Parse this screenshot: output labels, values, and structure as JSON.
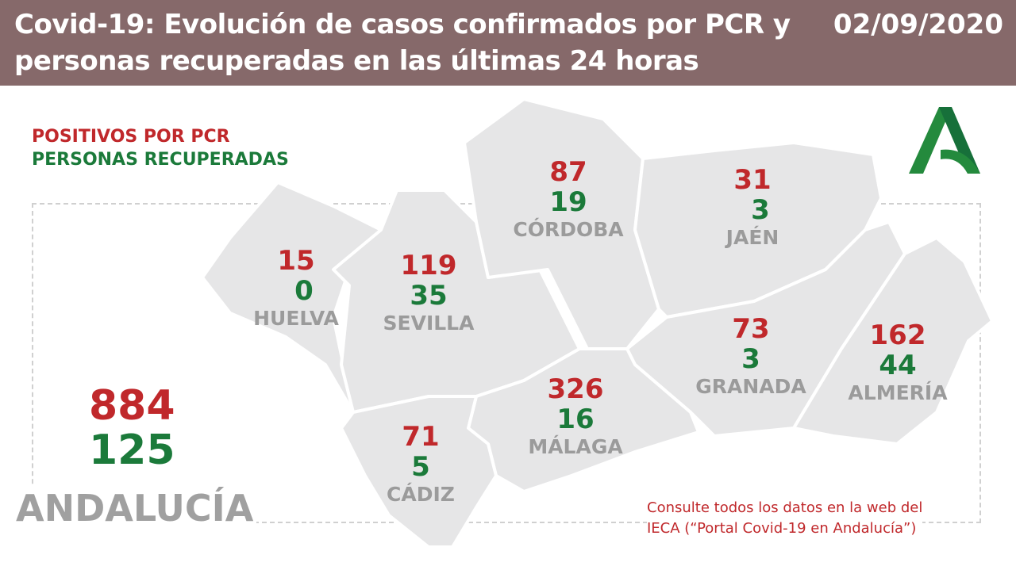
{
  "header": {
    "title": "Covid-19: Evolución de casos confirmados por PCR y personas recuperadas en las últimas 24 horas",
    "date": "02/09/2020"
  },
  "legend": {
    "positive": "POSITIVOS POR PCR",
    "recovered": "PERSONAS RECUPERADAS"
  },
  "colors": {
    "header": "#86696a",
    "positive": "#c0282b",
    "recovered": "#1b7a3a",
    "province_fill": "#e6e6e7"
  },
  "provinces": [
    {
      "name": "HUELVA",
      "positive": "15",
      "recovered": "0"
    },
    {
      "name": "SEVILLA",
      "positive": "119",
      "recovered": "35"
    },
    {
      "name": "CÓRDOBA",
      "positive": "87",
      "recovered": "19"
    },
    {
      "name": "JAÉN",
      "positive": "31",
      "recovered": "3"
    },
    {
      "name": "GRANADA",
      "positive": "73",
      "recovered": "3"
    },
    {
      "name": "ALMERÍA",
      "positive": "162",
      "recovered": "44"
    },
    {
      "name": "MÁLAGA",
      "positive": "326",
      "recovered": "16"
    },
    {
      "name": "CÁDIZ",
      "positive": "71",
      "recovered": "5"
    }
  ],
  "total": {
    "name": "ANDALUCÍA",
    "positive": "884",
    "recovered": "125"
  },
  "note": {
    "line1": "Consulte todos los datos en la web del",
    "line2": "IECA (“Portal Covid-19 en Andalucía”)"
  },
  "logo": {
    "icon": "junta-de-andalucia-logo"
  }
}
